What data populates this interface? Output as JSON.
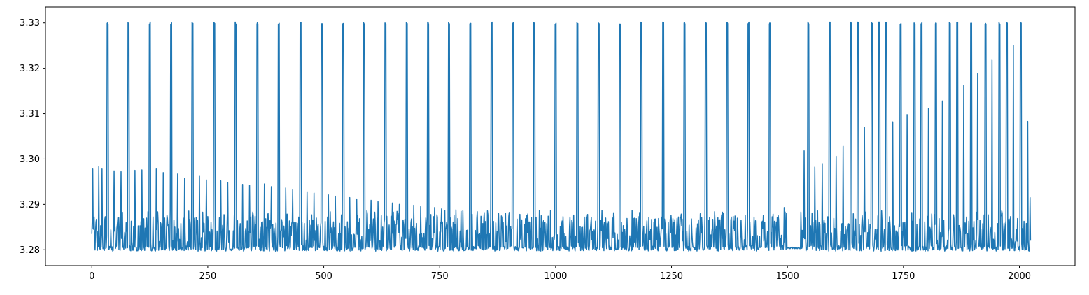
{
  "chart_data": {
    "type": "line",
    "title": "",
    "xlabel": "",
    "ylabel": "",
    "xlim": [
      -100,
      2120
    ],
    "ylim": [
      3.2765,
      3.3335
    ],
    "x_ticks": [
      0,
      250,
      500,
      750,
      1000,
      1250,
      1500,
      1750,
      2000
    ],
    "y_ticks": [
      3.28,
      3.29,
      3.3,
      3.31,
      3.32,
      3.33
    ],
    "x_tick_labels": [
      "0",
      "250",
      "500",
      "750",
      "1000",
      "1250",
      "1500",
      "1750",
      "2000"
    ],
    "y_tick_labels": [
      "3.28",
      "3.29",
      "3.30",
      "3.31",
      "3.32",
      "3.33"
    ],
    "grid": false,
    "legend": "none",
    "series": [
      {
        "color": "#1f77b4",
        "n_points": 2025,
        "baseline_low": 3.2797,
        "spike_top": 3.3302,
        "spike_x": [
          33,
          78,
          124,
          170,
          216,
          263,
          309,
          356,
          402,
          449,
          495,
          541,
          586,
          632,
          678,
          724,
          769,
          815,
          861,
          907,
          953,
          999,
          1046,
          1092,
          1138,
          1184,
          1231,
          1277,
          1323,
          1369,
          1415,
          1461,
          1544,
          1590,
          1636,
          1651,
          1681,
          1697,
          1712,
          1743,
          1773,
          1788,
          1819,
          1849,
          1865,
          1895,
          1926,
          1956,
          1972,
          2002
        ],
        "mid_spikes": [
          {
            "x": 2,
            "y": 3.2978
          },
          {
            "x": 15,
            "y": 3.2983
          },
          {
            "x": 22,
            "y": 3.2978
          },
          {
            "x": 48,
            "y": 3.2974
          },
          {
            "x": 63,
            "y": 3.2972
          },
          {
            "x": 93,
            "y": 3.2975
          },
          {
            "x": 108,
            "y": 3.2976
          },
          {
            "x": 139,
            "y": 3.2978
          },
          {
            "x": 154,
            "y": 3.297
          },
          {
            "x": 185,
            "y": 3.2967
          },
          {
            "x": 200,
            "y": 3.2958
          },
          {
            "x": 232,
            "y": 3.2962
          },
          {
            "x": 247,
            "y": 3.2954
          },
          {
            "x": 278,
            "y": 3.2952
          },
          {
            "x": 293,
            "y": 3.2948
          },
          {
            "x": 325,
            "y": 3.2944
          },
          {
            "x": 340,
            "y": 3.2942
          },
          {
            "x": 372,
            "y": 3.2945
          },
          {
            "x": 387,
            "y": 3.2939
          },
          {
            "x": 418,
            "y": 3.2936
          },
          {
            "x": 433,
            "y": 3.2932
          },
          {
            "x": 464,
            "y": 3.2928
          },
          {
            "x": 479,
            "y": 3.2925
          },
          {
            "x": 510,
            "y": 3.2921
          },
          {
            "x": 525,
            "y": 3.2918
          },
          {
            "x": 556,
            "y": 3.2915
          },
          {
            "x": 571,
            "y": 3.2912
          },
          {
            "x": 602,
            "y": 3.2909
          },
          {
            "x": 617,
            "y": 3.2906
          },
          {
            "x": 648,
            "y": 3.2903
          },
          {
            "x": 663,
            "y": 3.29
          },
          {
            "x": 694,
            "y": 3.2898
          },
          {
            "x": 709,
            "y": 3.2895
          },
          {
            "x": 739,
            "y": 3.2893
          },
          {
            "x": 754,
            "y": 3.289
          },
          {
            "x": 785,
            "y": 3.2888
          },
          {
            "x": 800,
            "y": 3.2886
          },
          {
            "x": 831,
            "y": 3.2884
          },
          {
            "x": 846,
            "y": 3.2882
          },
          {
            "x": 877,
            "y": 3.288
          },
          {
            "x": 892,
            "y": 3.288
          },
          {
            "x": 923,
            "y": 3.2878
          },
          {
            "x": 938,
            "y": 3.2876
          },
          {
            "x": 969,
            "y": 3.2875
          },
          {
            "x": 984,
            "y": 3.2874
          },
          {
            "x": 1016,
            "y": 3.2873
          },
          {
            "x": 1031,
            "y": 3.2872
          },
          {
            "x": 1062,
            "y": 3.2872
          },
          {
            "x": 1077,
            "y": 3.2871
          },
          {
            "x": 1108,
            "y": 3.287
          },
          {
            "x": 1123,
            "y": 3.287
          },
          {
            "x": 1154,
            "y": 3.2869
          },
          {
            "x": 1169,
            "y": 3.2869
          },
          {
            "x": 1201,
            "y": 3.2871
          },
          {
            "x": 1216,
            "y": 3.2868
          },
          {
            "x": 1247,
            "y": 3.2867
          },
          {
            "x": 1262,
            "y": 3.2869
          },
          {
            "x": 1293,
            "y": 3.2868
          },
          {
            "x": 1308,
            "y": 3.2866
          },
          {
            "x": 1339,
            "y": 3.2867
          },
          {
            "x": 1354,
            "y": 3.2866
          },
          {
            "x": 1385,
            "y": 3.2863
          },
          {
            "x": 1400,
            "y": 3.2865
          },
          {
            "x": 1431,
            "y": 3.2864
          },
          {
            "x": 1446,
            "y": 3.2863
          },
          {
            "x": 1478,
            "y": 3.2871
          },
          {
            "x": 1493,
            "y": 3.2893
          },
          {
            "x": 1529,
            "y": 3.2883
          },
          {
            "x": 1536,
            "y": 3.3018
          },
          {
            "x": 1559,
            "y": 3.2982
          },
          {
            "x": 1575,
            "y": 3.299
          },
          {
            "x": 1605,
            "y": 3.3006
          },
          {
            "x": 1620,
            "y": 3.3028
          },
          {
            "x": 1666,
            "y": 3.307
          },
          {
            "x": 1727,
            "y": 3.3082
          },
          {
            "x": 1758,
            "y": 3.3098
          },
          {
            "x": 1804,
            "y": 3.3112
          },
          {
            "x": 1834,
            "y": 3.3128
          },
          {
            "x": 1880,
            "y": 3.3162
          },
          {
            "x": 1910,
            "y": 3.3188
          },
          {
            "x": 1941,
            "y": 3.3218
          },
          {
            "x": 1987,
            "y": 3.325
          },
          {
            "x": 2018,
            "y": 3.3083
          }
        ],
        "flat_segment": {
          "x_start": 1500,
          "x_end": 1530,
          "y": 3.2804
        }
      }
    ]
  }
}
